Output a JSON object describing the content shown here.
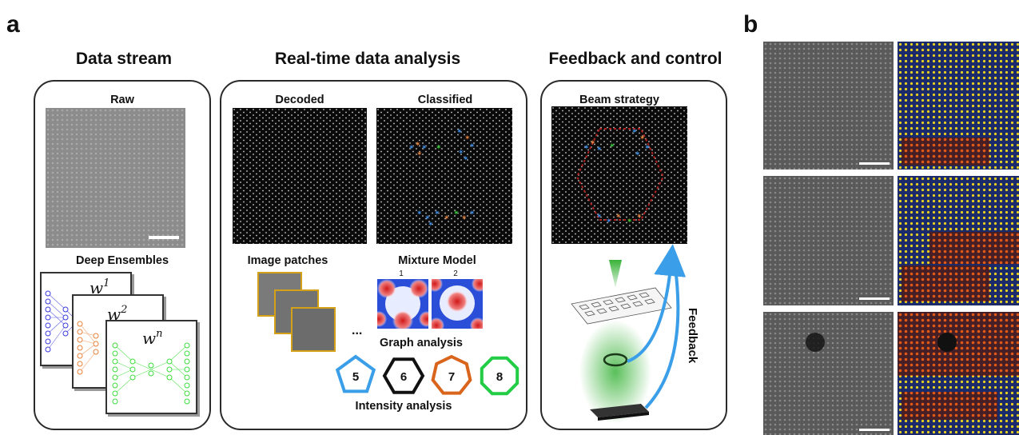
{
  "panels": {
    "a": "a",
    "b": "b"
  },
  "sections": {
    "data_stream": "Data stream",
    "realtime": "Real-time data analysis",
    "feedback_control": "Feedback and control"
  },
  "labels": {
    "raw": "Raw",
    "deep_ensembles": "Deep Ensembles",
    "decoded": "Decoded",
    "classified": "Classified",
    "image_patches": "Image patches",
    "mixture_model": "Mixture Model",
    "mixture_1": "1",
    "mixture_2": "2",
    "ellipsis": "...",
    "graph_analysis": "Graph analysis",
    "intensity_analysis": "Intensity analysis",
    "beam_strategy": "Beam strategy",
    "feedback": "Feedback"
  },
  "ensemble_weights": [
    {
      "base": "w",
      "sup": "1",
      "color": "#3a3adb"
    },
    {
      "base": "w",
      "sup": "2",
      "color": "#e8823a"
    },
    {
      "base": "w",
      "sup": "n",
      "color": "#3ddc3d"
    }
  ],
  "polygons": [
    {
      "number": "5",
      "sides": 5,
      "color": "#3a9ee8"
    },
    {
      "number": "6",
      "sides": 6,
      "color": "#111111"
    },
    {
      "number": "7",
      "sides": 7,
      "color": "#d9641c"
    },
    {
      "number": "8",
      "sides": 8,
      "color": "#22cc44"
    }
  ],
  "colors": {
    "feedback_arrow": "#3a9ee8",
    "beam": "#22aa22",
    "beam_path": "#b02222",
    "defect_blue": "#3a8ee8",
    "defect_orange": "#e8823a",
    "defect_green": "#33cc33"
  }
}
